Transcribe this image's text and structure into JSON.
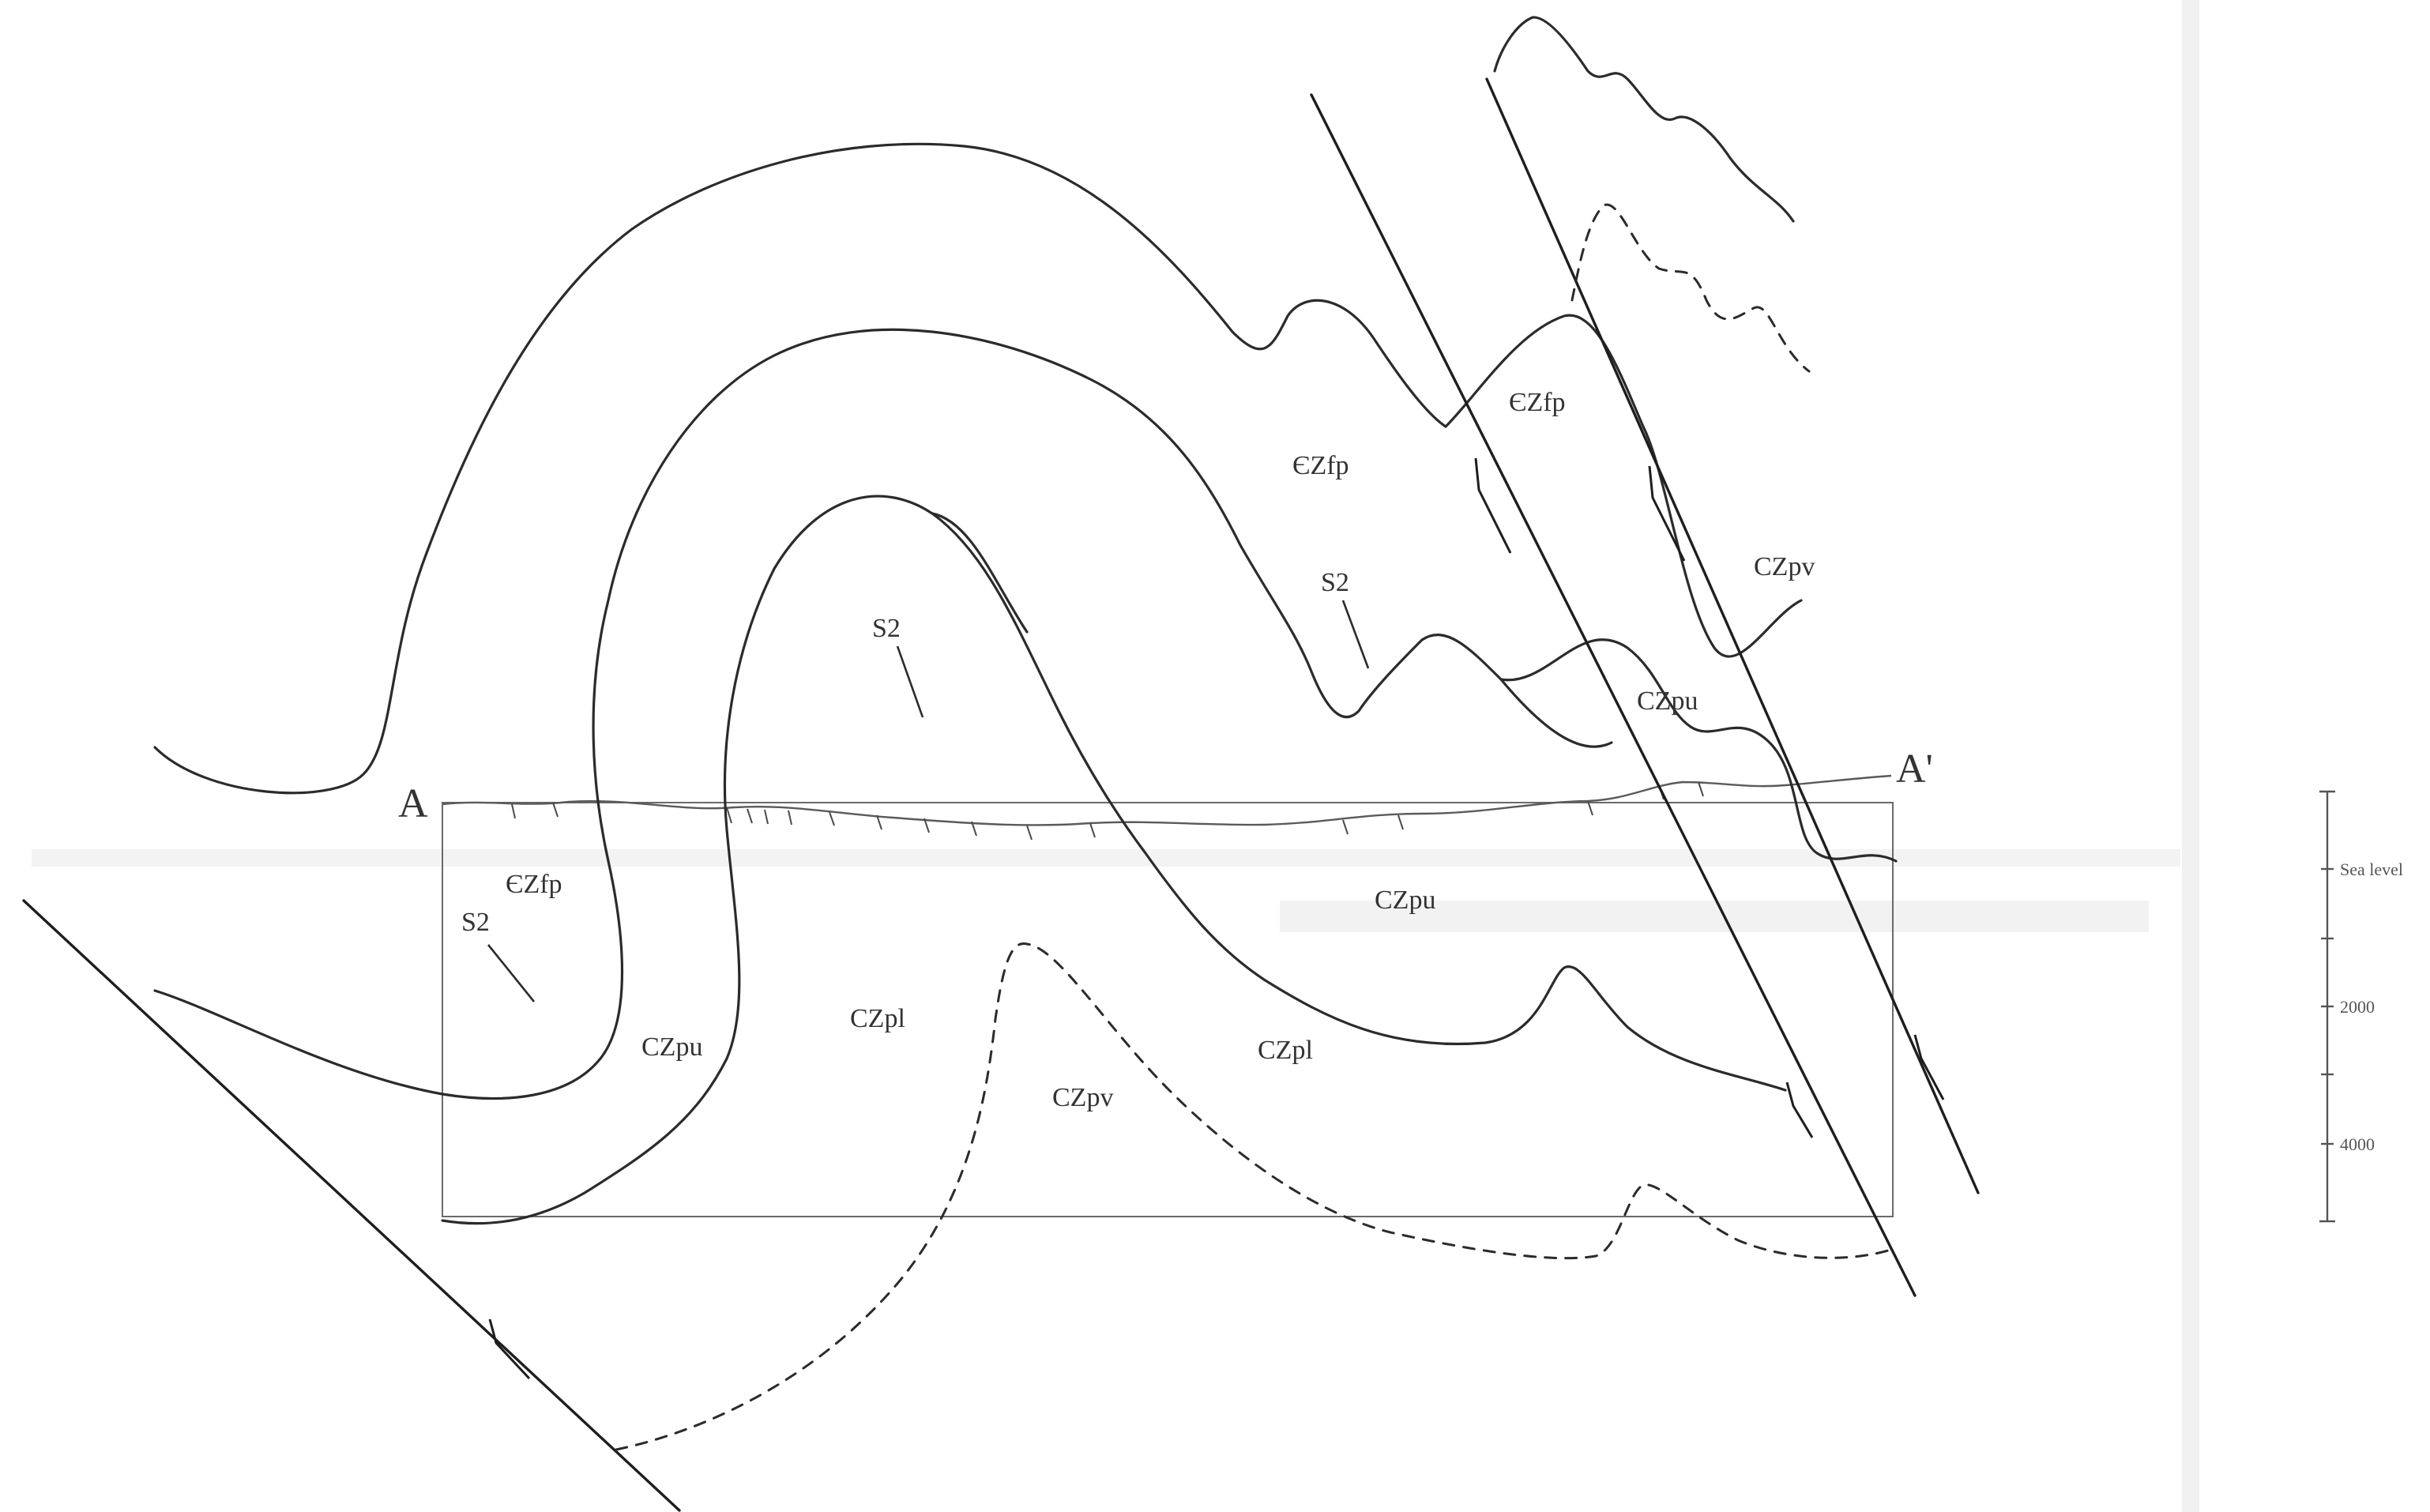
{
  "section": {
    "end_left": "A",
    "end_right": "A'"
  },
  "units": {
    "ezfp_upper": "ЄZfp",
    "ezfp_center": "ЄZfp",
    "ezfp_left": "ЄZfp",
    "czpv_right": "CZpv",
    "czpu_right": "CZpu",
    "czpu_mid": "CZpu",
    "czpu_left": "CZpu",
    "czpl_center": "CZpl",
    "czpl_right": "CZpl",
    "czpv_bottom": "CZpv",
    "s2_a": "S2",
    "s2_b": "S2",
    "s2_c": "S2"
  },
  "scale_bar": {
    "sea_level": "Sea level",
    "tick_2000": "2000",
    "tick_4000": "4000"
  },
  "colors": {
    "line": "#2b2b2b",
    "background": "#ffffff"
  }
}
